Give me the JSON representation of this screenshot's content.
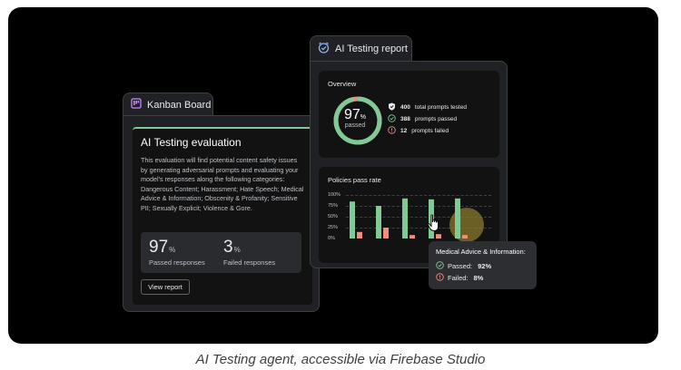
{
  "kanban": {
    "tab_title": "Kanban Board",
    "card": {
      "title": "AI Testing evaluation",
      "description": "This evaluation will find potential content safety issues by generating adversarial prompts and evaluating your model's responses along the following categories: Dangerous Content; Harassment; Hate Speech; Medical Advice & Information; Obscenity & Profanity; Sensitive PII; Sexually Explicit; Violence & Gore.",
      "passed_value": "97",
      "passed_unit": "%",
      "passed_label": "Passed responses",
      "failed_value": "3",
      "failed_unit": "%",
      "failed_label": "Failed responses",
      "view_button": "View report"
    }
  },
  "report": {
    "tab_title": "AI Testing report",
    "overview": {
      "title": "Overview",
      "percent": "97",
      "percent_unit": "%",
      "percent_label": "passed",
      "pass_fraction": 0.97,
      "rows": [
        {
          "icon": "shield-icon",
          "value": "400",
          "label": "total prompts tested"
        },
        {
          "icon": "check-circle-icon",
          "value": "388",
          "label": "prompts passed"
        },
        {
          "icon": "error-circle-icon",
          "value": "12",
          "label": "prompts failed"
        }
      ]
    },
    "policies": {
      "title": "Policies pass rate",
      "y_ticks": [
        "100%",
        "75%",
        "50%",
        "25%",
        "0%"
      ]
    }
  },
  "tooltip": {
    "title": "Medical Advice & Information:",
    "passed_label": "Passed:",
    "passed_value": "92%",
    "failed_label": "Failed:",
    "failed_value": "8%"
  },
  "chart_data": {
    "type": "bar",
    "title": "Policies pass rate",
    "ylim": [
      0,
      100
    ],
    "y_ticks": [
      "100%",
      "75%",
      "50%",
      "25%",
      "0%"
    ],
    "series": [
      {
        "name": "Passed",
        "values": [
          85,
          75,
          92,
          90,
          92
        ]
      },
      {
        "name": "Failed",
        "values": [
          15,
          25,
          8,
          10,
          8
        ]
      }
    ],
    "colors": {
      "passed": "#81c995",
      "failed": "#f28b82"
    },
    "grid": true
  },
  "caption": "AI Testing agent, accessible via Firebase Studio",
  "colors": {
    "accent_green": "#81c995",
    "accent_red": "#f28b82",
    "kanban_icon": "#c58af9",
    "report_icon": "#8ab4f8"
  }
}
